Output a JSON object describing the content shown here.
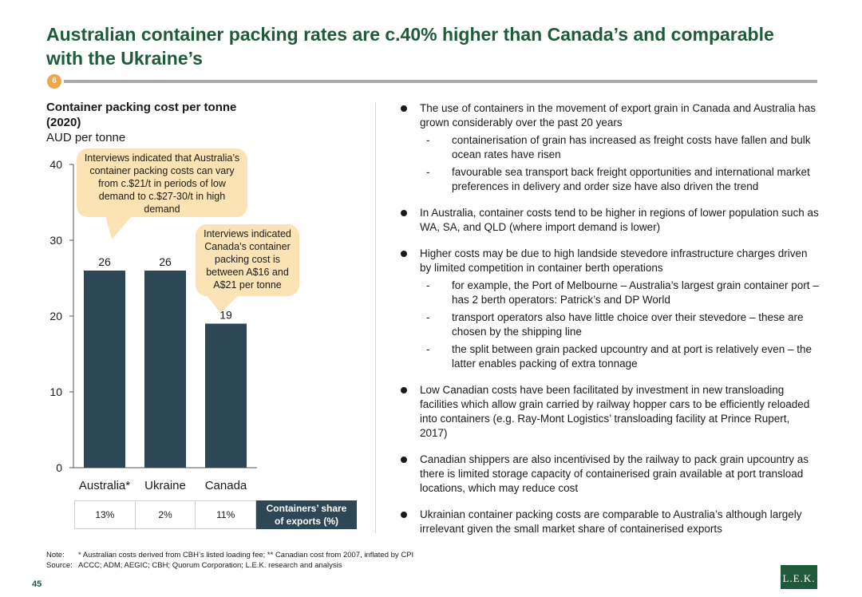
{
  "title": "Australian container packing rates are c.40% higher than Canada’s and comparable with the Ukraine’s",
  "badge": "6",
  "chart_data": {
    "type": "bar",
    "title_line1": "Container packing cost per tonne",
    "title_line2": "(2020)",
    "ylabel": "AUD per tonne",
    "categories": [
      "Australia*",
      "Ukraine",
      "Canada"
    ],
    "values": [
      26,
      26,
      19
    ],
    "value_labels": [
      "26",
      "26",
      "19"
    ],
    "yticks": [
      0,
      10,
      20,
      30,
      40
    ],
    "ytick_labels": [
      "0",
      "10",
      "20",
      "30",
      "40"
    ],
    "ylim": [
      0,
      40
    ],
    "bar_color": "#2e4756",
    "grid": false
  },
  "callouts": {
    "australia": "Interviews indicated that Australia’s container packing costs can vary from c.$21/t in periods of low demand to c.$27-30/t in high demand",
    "canada": "Interviews indicated Canada’s container packing cost is between A$16 and A$21 per tonne"
  },
  "share_table": {
    "values": [
      "13%",
      "2%",
      "11%"
    ],
    "label_line1": "Containers’ share",
    "label_line2": "of exports (%)"
  },
  "bullets": [
    {
      "text": "The use of containers in the movement of export grain in Canada and Australia has grown considerably over the past 20 years",
      "subs": [
        "containerisation of grain has increased as freight costs have fallen and bulk ocean rates have risen",
        "favourable sea transport back freight opportunities and international market preferences in delivery and order size have also driven the trend"
      ]
    },
    {
      "text": "In Australia, container costs tend to be higher in regions of lower population such as WA, SA, and QLD (where import demand is lower)",
      "subs": []
    },
    {
      "text": "Higher costs may be due to high landside stevedore infrastructure charges driven by limited competition in container berth operations",
      "subs": [
        "for example, the Port of Melbourne – Australia’s largest grain container port – has 2 berth operators: Patrick’s and DP World",
        "transport operators also have little choice over their stevedore – these are chosen by the shipping line",
        "the split between grain packed upcountry and at port is relatively even – the latter enables packing of extra tonnage"
      ]
    },
    {
      "text": "Low Canadian costs have been facilitated by investment in new transloading facilities which allow grain carried by railway hopper cars to be efficiently reloaded into containers (e.g. Ray-Mont Logistics’ transloading facility at Prince Rupert, 2017)",
      "subs": []
    },
    {
      "text": "Canadian shippers are also incentivised by the railway to pack grain upcountry as there is limited storage capacity of containerised grain available at port transload locations, which may reduce cost",
      "subs": []
    },
    {
      "text": "Ukrainian container packing costs are comparable to Australia’s although largely irrelevant given the small market share of containerised exports",
      "subs": []
    }
  ],
  "note_label": "Note:",
  "note_text": "* Australian costs derived from CBH’s listed loading fee; ** Canadian cost from 2007, inflated by CPI",
  "source_label": "Source:",
  "source_text": "ACCC; ADM; AEGIC; CBH; Quorum Corporation; L.E.K. research and analysis",
  "page_number": "45",
  "logo_text": "L.E.K."
}
